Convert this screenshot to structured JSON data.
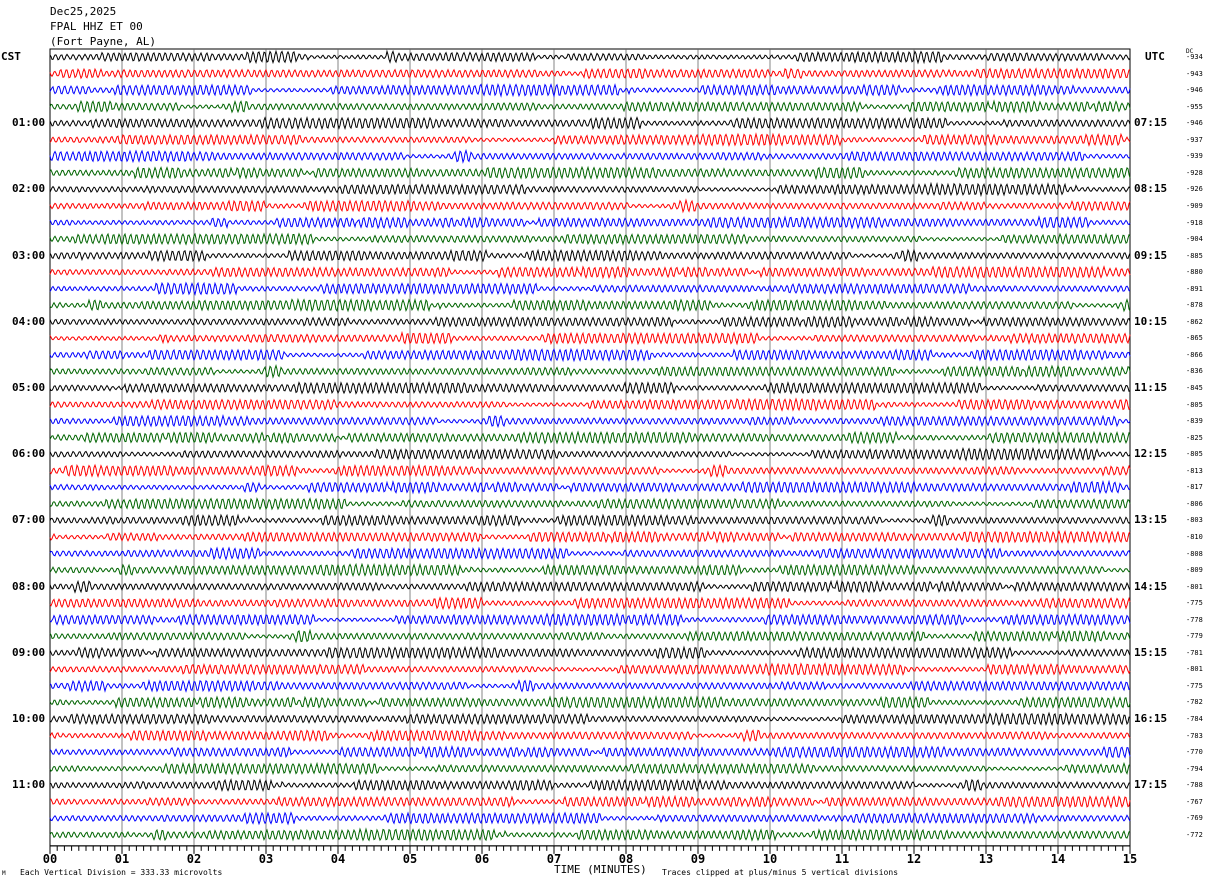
{
  "header": {
    "date": "Dec25,2025",
    "station": "FPAL HHZ ET 00",
    "location": "(Fort Payne, AL)"
  },
  "left_axis_label": "CST",
  "right_axis_label": "UTC",
  "dc_label": "DC",
  "footer": {
    "scale": "Each Vertical Division =  333.33 microvolts",
    "xlabel": "TIME (MINUTES)",
    "clip_note": "Traces clipped at plus/minus 5 vertical divisions",
    "corner_mark": "M"
  },
  "chart_data": {
    "type": "line",
    "title": "",
    "xlabel": "TIME (MINUTES)",
    "xlim": [
      0,
      15
    ],
    "x_ticks": [
      "00",
      "01",
      "02",
      "03",
      "04",
      "05",
      "06",
      "07",
      "08",
      "09",
      "10",
      "11",
      "12",
      "13",
      "14",
      "15"
    ],
    "trace_colors": [
      "#000000",
      "#ff0000",
      "#0000ff",
      "#006400"
    ],
    "rows_per_hour": 4,
    "cst_labels": [
      "",
      "01:00",
      "02:00",
      "03:00",
      "04:00",
      "05:00",
      "06:00",
      "07:00",
      "08:00",
      "09:00",
      "10:00",
      "11:00"
    ],
    "utc_labels": [
      "",
      "07:15",
      "08:15",
      "09:15",
      "10:15",
      "11:15",
      "12:15",
      "13:15",
      "14:15",
      "15:15",
      "16:15",
      "17:15"
    ],
    "dc_offsets": [
      -934,
      -943,
      -946,
      -955,
      -946,
      -937,
      -939,
      -928,
      -926,
      -909,
      -918,
      -904,
      -885,
      -880,
      -891,
      -878,
      -862,
      -865,
      -866,
      -836,
      -845,
      -805,
      -839,
      -825,
      -805,
      -813,
      -817,
      -806,
      -803,
      -810,
      -808,
      -809,
      -801,
      -775,
      -778,
      -779,
      -781,
      -801,
      -775,
      -782,
      -784,
      -783,
      -770,
      -794,
      -788,
      -767,
      -769,
      -772
    ],
    "grid": true
  }
}
